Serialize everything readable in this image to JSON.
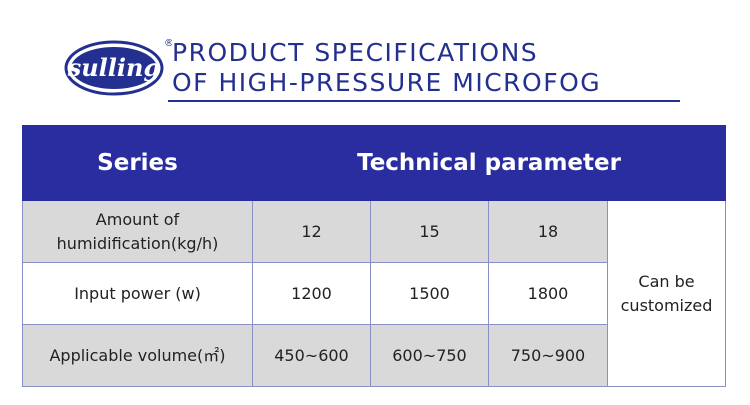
{
  "header": {
    "logo": "sulling",
    "logo_mark": "®",
    "title_lines": [
      "PRODUCT SPECIFICATIONS",
      "OF HIGH-PRESSURE MICROFOG"
    ]
  },
  "table": {
    "headers": [
      "Series",
      "Technical parameter"
    ],
    "rows": [
      [
        "Amount of humidification(kg/h)",
        "12",
        "15",
        "18"
      ],
      [
        "Input power (w)",
        "1200",
        "1500",
        "1800"
      ],
      [
        "Applicable volume(㎡)",
        "450~600",
        "600~750",
        "750~900"
      ]
    ],
    "note": "Can be customized"
  }
}
